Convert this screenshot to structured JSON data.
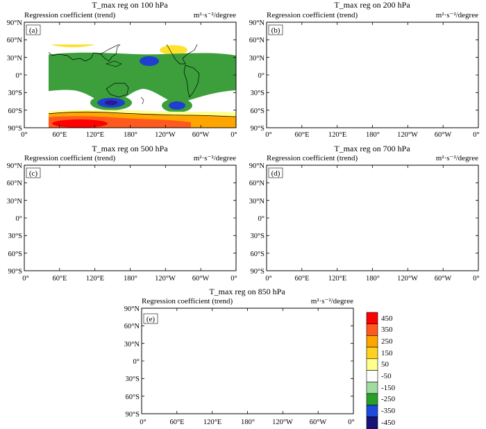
{
  "figure": {
    "lat_ticks": [
      "90°N",
      "60°N",
      "30°N",
      "0°",
      "30°S",
      "60°S",
      "90°S"
    ],
    "lon_ticks": [
      "0°",
      "60°E",
      "120°E",
      "180°",
      "120°W",
      "60°W",
      "0°"
    ],
    "panels": [
      {
        "id": "a",
        "label": "(a)",
        "title": "T_max reg on 100 hPa",
        "left_text": "Regression coefficient (trend)",
        "units": "m²·s⁻²/degree"
      },
      {
        "id": "b",
        "label": "(b)",
        "title": "T_max reg on 200 hPa",
        "left_text": "Regression coefficient (trend)",
        "units": "m²·s⁻²/degree"
      },
      {
        "id": "c",
        "label": "(c)",
        "title": "T_max reg on 500 hPa",
        "left_text": "Regression coefficient (trend)",
        "units": "m²·s⁻²/degree"
      },
      {
        "id": "d",
        "label": "(d)",
        "title": "T_max reg on 700 hPa",
        "left_text": "Regression coefficient (trend)",
        "units": "m²·s⁻²/degree"
      },
      {
        "id": "e",
        "label": "(e)",
        "title": "T_max reg on 850 hPa",
        "left_text": "Regression coefficient (trend)",
        "units": "m²·s⁻²/degree"
      }
    ],
    "colorbar": {
      "levels": [
        "450",
        "350",
        "250",
        "150",
        "50",
        "-50",
        "-150",
        "-250",
        "-350",
        "-450"
      ],
      "colors": [
        "#ff0000",
        "#ff5a1e",
        "#ffa500",
        "#ffd21e",
        "#ffff8c",
        "#ffffff",
        "#a0dca0",
        "#28a028",
        "#1e4bdc",
        "#14147a",
        "#6a0dad"
      ]
    }
  }
}
